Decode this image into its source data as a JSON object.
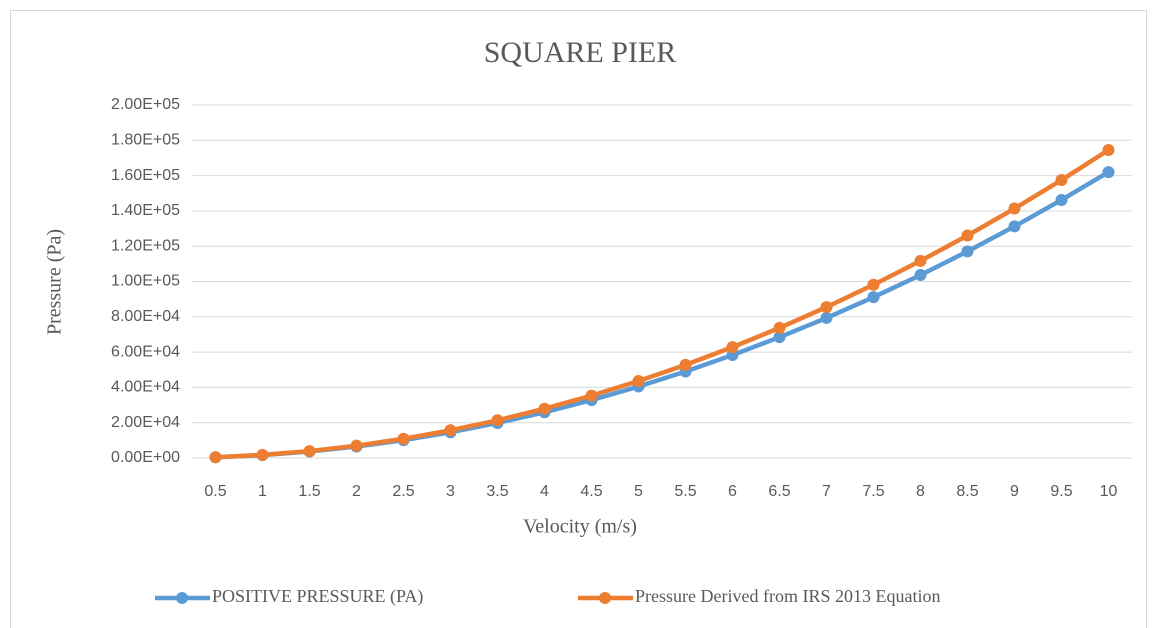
{
  "chart_data": {
    "type": "line",
    "title": "SQUARE PIER",
    "x_label": "Velocity (m/s)",
    "y_label": "Pressure (Pa)",
    "categories": [
      "0.5",
      "1",
      "1.5",
      "2",
      "2.5",
      "3",
      "3.5",
      "4",
      "4.5",
      "5",
      "5.5",
      "6",
      "6.5",
      "7",
      "7.5",
      "8",
      "8.5",
      "9",
      "9.5",
      "10"
    ],
    "series": [
      {
        "name": "POSITIVE PRESSURE (PA)",
        "color": "#5b9bd5",
        "values": [
          405,
          1620,
          3645,
          6480,
          10125,
          14580,
          19845,
          25920,
          32805,
          40500,
          49005,
          58320,
          68445,
          79380,
          91125,
          103680,
          117045,
          131220,
          146205,
          162000
        ]
      },
      {
        "name": "Pressure Derived from IRS 2013 Equation",
        "color": "#ed7d31",
        "values": [
          436,
          1745,
          3926,
          6980,
          10906,
          15705,
          21376,
          27920,
          35336,
          43625,
          52786,
          62820,
          73726,
          85505,
          98156,
          111680,
          126076,
          141345,
          157486,
          174500
        ]
      }
    ],
    "ylim": [
      0,
      200000
    ],
    "yticks": [
      {
        "value": 0,
        "label": "0.00E+00"
      },
      {
        "value": 20000,
        "label": "2.00E+04"
      },
      {
        "value": 40000,
        "label": "4.00E+04"
      },
      {
        "value": 60000,
        "label": "6.00E+04"
      },
      {
        "value": 80000,
        "label": "8.00E+04"
      },
      {
        "value": 100000,
        "label": "1.00E+05"
      },
      {
        "value": 120000,
        "label": "1.20E+05"
      },
      {
        "value": 140000,
        "label": "1.40E+05"
      },
      {
        "value": 160000,
        "label": "1.60E+05"
      },
      {
        "value": 180000,
        "label": "1.80E+05"
      },
      {
        "value": 200000,
        "label": "2.00E+05"
      }
    ],
    "grid": true,
    "legend": "bottom"
  }
}
